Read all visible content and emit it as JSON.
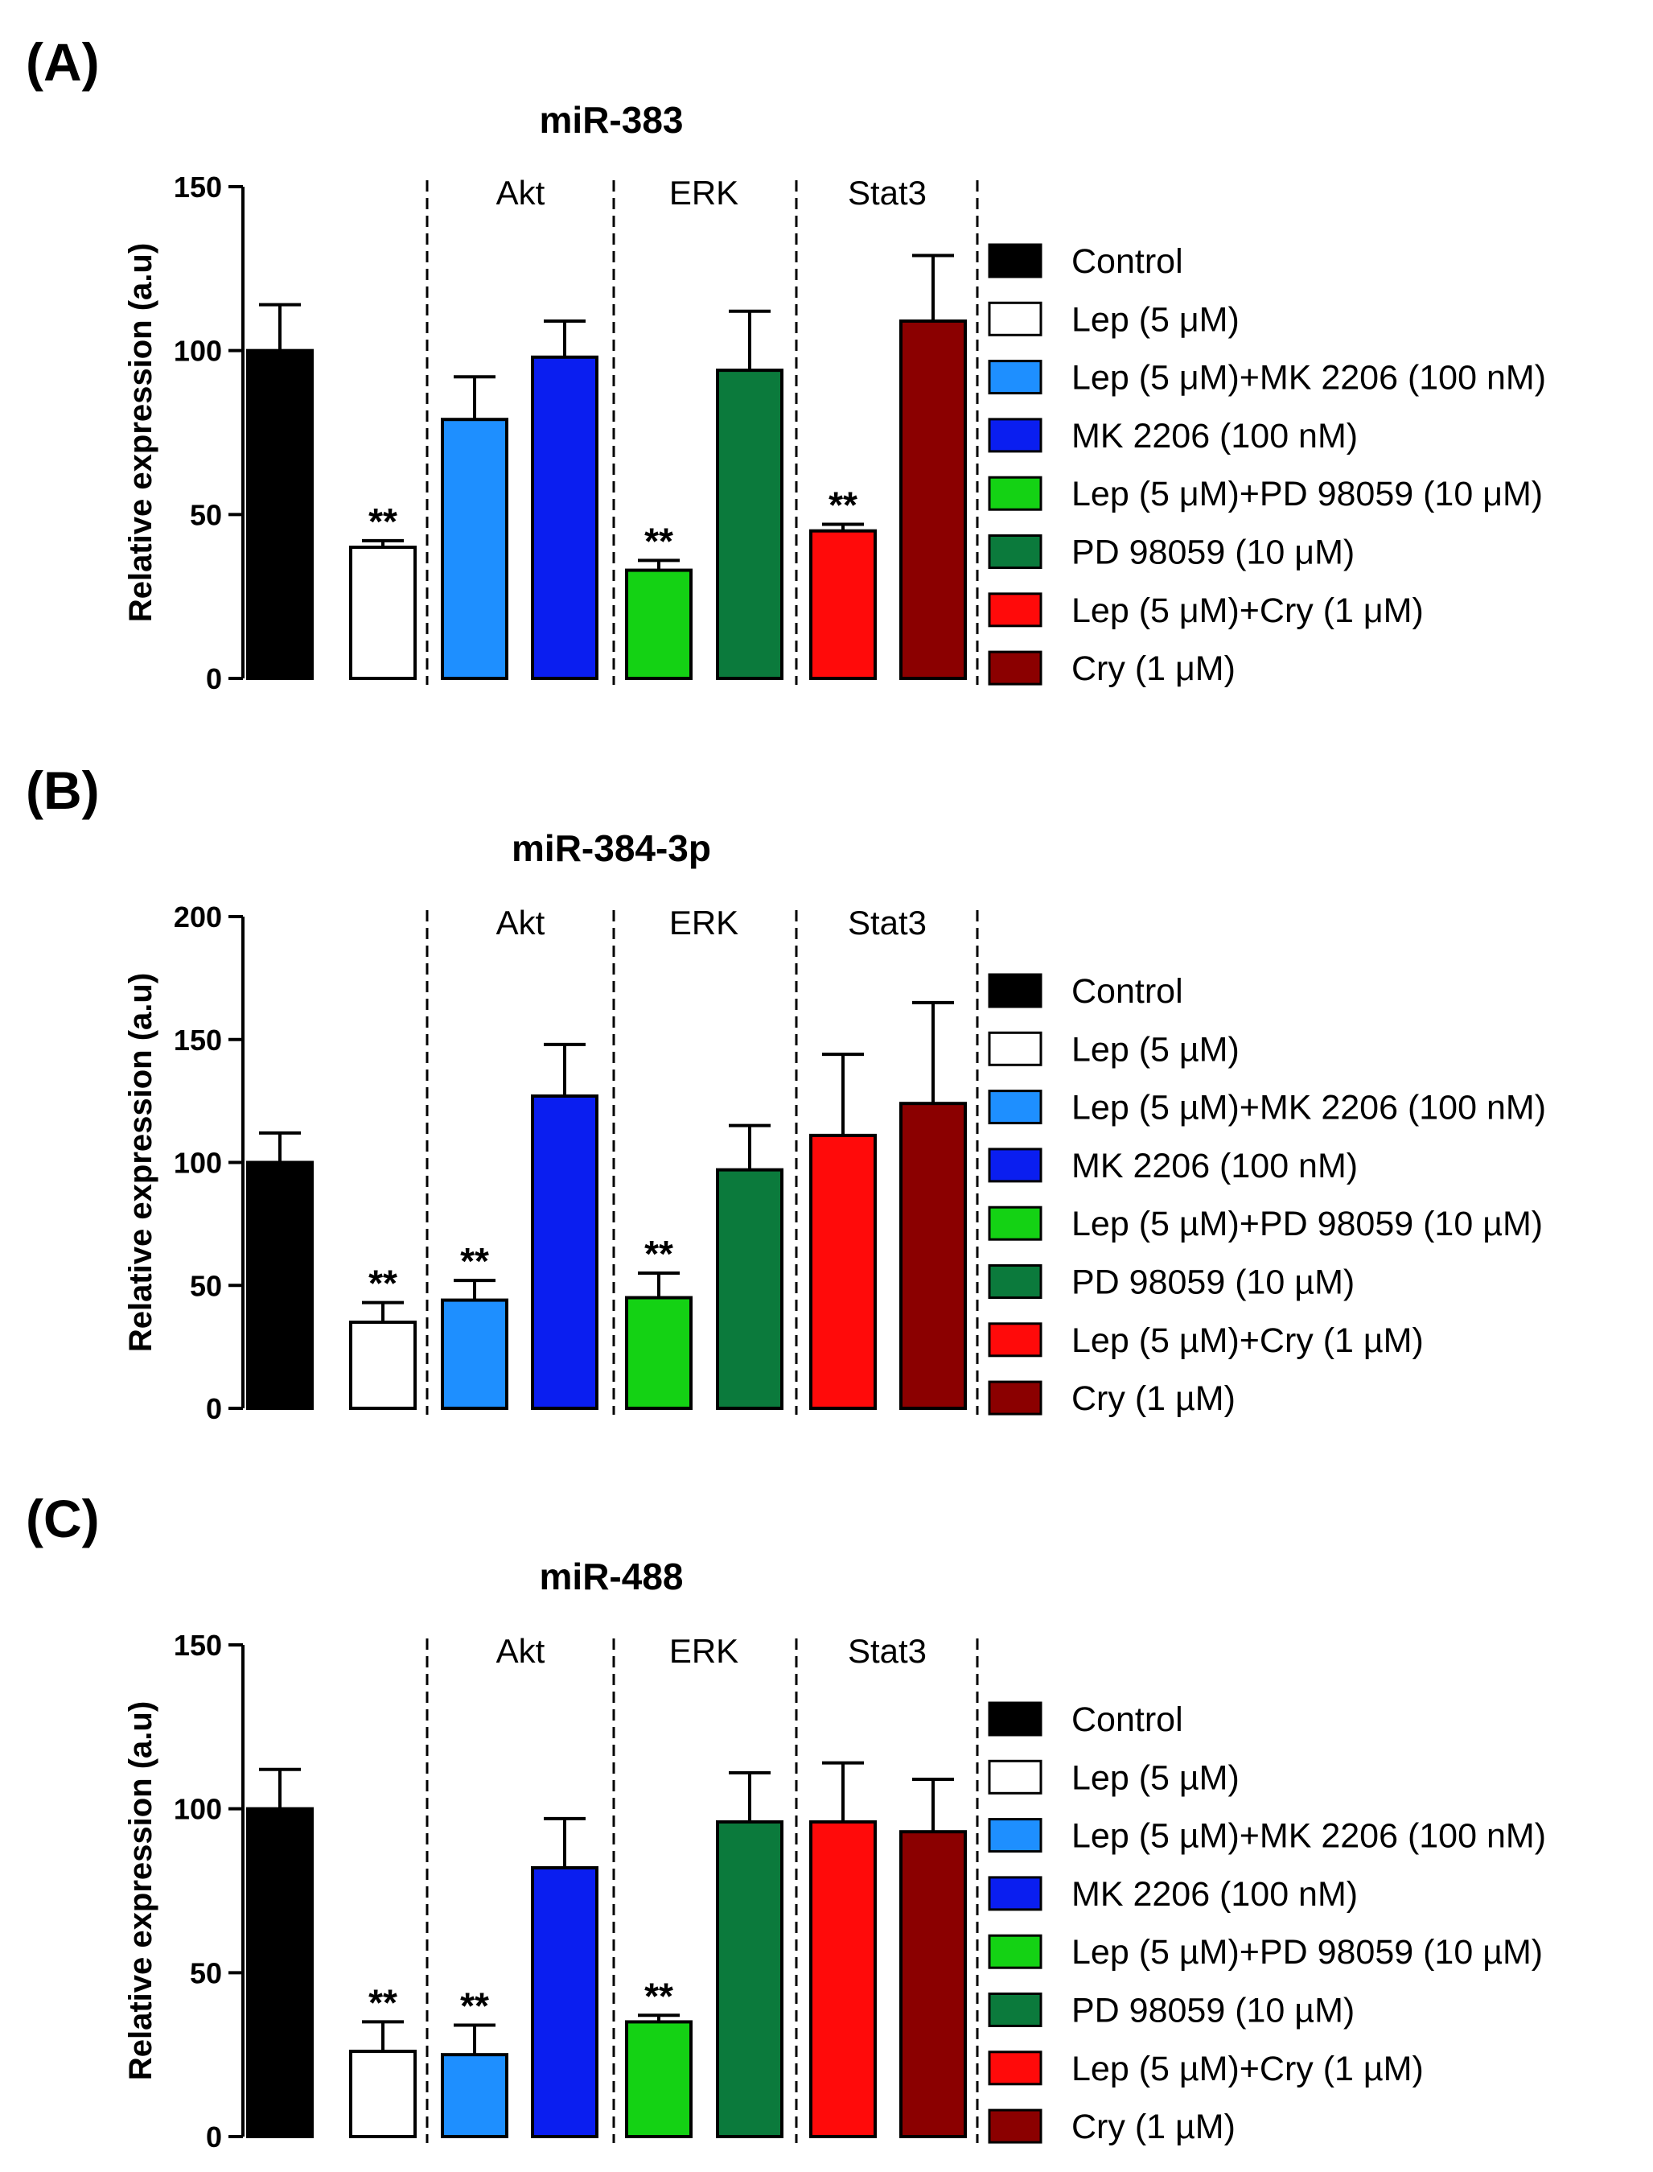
{
  "chart_data": [
    {
      "type": "bar",
      "panel_label": "(A)",
      "title": "miR-383",
      "ylabel": "Relative expression (a.u)",
      "ylim": [
        0,
        150
      ],
      "yticks": [
        0,
        50,
        100,
        150
      ],
      "group_labels": [
        "Akt",
        "ERK",
        "Stat3"
      ],
      "categories": [
        "Control",
        "Lep (5 μM)",
        "Lep (5 μM)+MK 2206 (100 nM)",
        "MK 2206 (100 nM)",
        "Lep (5 μM)+PD 98059 (10 μM)",
        "PD 98059 (10 μM)",
        "Lep (5 μM)+Cry (1 μM)",
        "Cry (1 μM)"
      ],
      "values": [
        100,
        40,
        79,
        98,
        33,
        94,
        45,
        109
      ],
      "errors": [
        14,
        2,
        13,
        11,
        3,
        18,
        2,
        20
      ],
      "significance": [
        "",
        "**",
        "",
        "",
        "**",
        "",
        "**",
        ""
      ],
      "legend": [
        "Control",
        "Lep (5 μM)",
        "Lep (5 μM)+MK 2206 (100 nM)",
        "MK 2206 (100 nM)",
        "Lep (5 μM)+PD 98059 (10 μM)",
        "PD 98059 (10 μM)",
        "Lep (5 μM)+Cry (1 μM)",
        "Cry (1 μM)"
      ]
    },
    {
      "type": "bar",
      "panel_label": "(B)",
      "title": "miR-384-3p",
      "ylabel": "Relative expression (a.u)",
      "ylim": [
        0,
        200
      ],
      "yticks": [
        0,
        50,
        100,
        150,
        200
      ],
      "group_labels": [
        "Akt",
        "ERK",
        "Stat3"
      ],
      "categories": [
        "Control",
        "Lep (5 µM)",
        "Lep (5 µM)+MK 2206 (100 nM)",
        "MK 2206 (100 nM)",
        "Lep (5 µM)+PD 98059 (10 µM)",
        "PD 98059 (10 µM)",
        "Lep (5 µM)+Cry (1 µM)",
        "Cry (1 µM)"
      ],
      "values": [
        100,
        35,
        44,
        127,
        45,
        97,
        111,
        124
      ],
      "errors": [
        12,
        8,
        8,
        21,
        10,
        18,
        33,
        41
      ],
      "significance": [
        "",
        "**",
        "**",
        "",
        "**",
        "",
        "",
        ""
      ],
      "legend": [
        "Control",
        "Lep (5 µM)",
        "Lep (5 µM)+MK 2206 (100 nM)",
        "MK 2206 (100 nM)",
        "Lep (5 µM)+PD 98059 (10 µM)",
        "PD 98059 (10 µM)",
        "Lep (5 µM)+Cry (1 µM)",
        "Cry (1 µM)"
      ]
    },
    {
      "type": "bar",
      "panel_label": "(C)",
      "title": "miR-488",
      "ylabel": "Relative expression (a.u)",
      "ylim": [
        0,
        150
      ],
      "yticks": [
        0,
        50,
        100,
        150
      ],
      "group_labels": [
        "Akt",
        "ERK",
        "Stat3"
      ],
      "categories": [
        "Control",
        "Lep (5 µM)",
        "Lep (5 µM)+MK 2206 (100 nM)",
        "MK 2206 (100 nM)",
        "Lep (5 µM)+PD 98059 (10 µM)",
        "PD 98059 (10 µM)",
        "Lep (5 µM)+Cry (1 µM)",
        "Cry (1 µM)"
      ],
      "values": [
        100,
        26,
        25,
        82,
        35,
        96,
        96,
        93
      ],
      "errors": [
        12,
        9,
        9,
        15,
        2,
        15,
        18,
        16
      ],
      "significance": [
        "",
        "**",
        "**",
        "",
        "**",
        "",
        "",
        ""
      ],
      "legend": [
        "Control",
        "Lep (5 µM)",
        "Lep (5 µM)+MK 2206 (100 nM)",
        "MK 2206 (100 nM)",
        "Lep (5 µM)+PD 98059 (10 µM)",
        "PD 98059 (10 µM)",
        "Lep (5 µM)+Cry (1 µM)",
        "Cry (1 µM)"
      ]
    }
  ],
  "colors": {
    "bars": [
      "#000000",
      "#ffffff",
      "#1e8fff",
      "#0a1ef0",
      "#14d214",
      "#0b7a3c",
      "#ff0a0a",
      "#8b0000"
    ]
  }
}
